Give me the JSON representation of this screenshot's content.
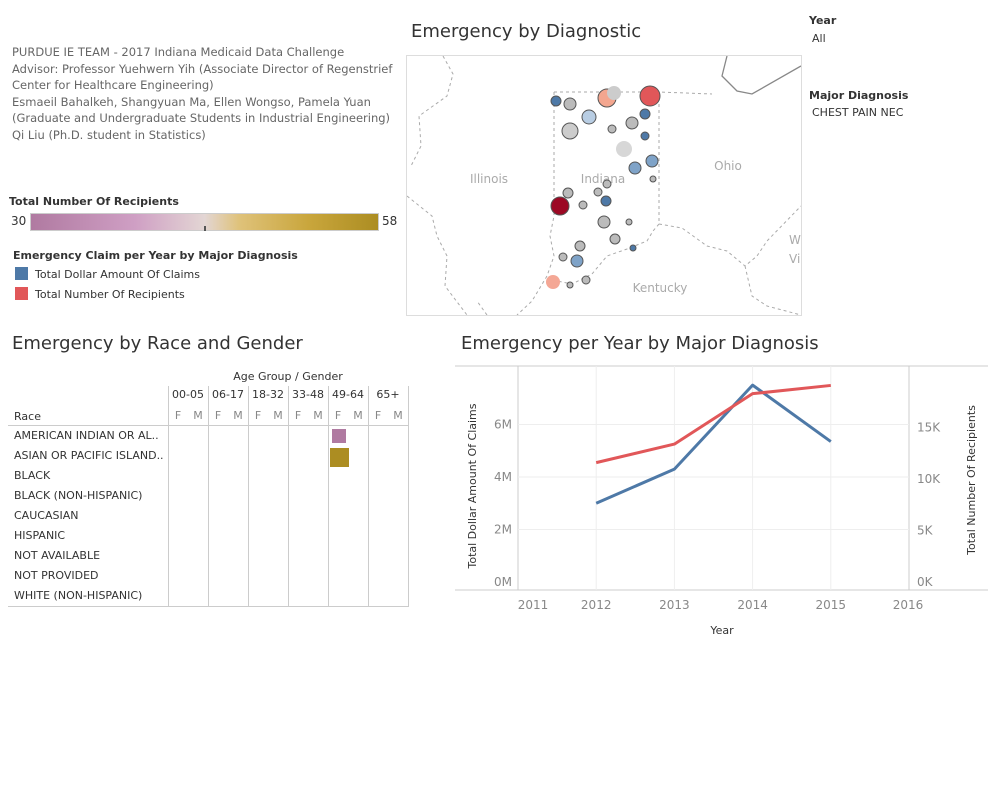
{
  "info": {
    "lines": [
      "PURDUE IE TEAM - 2017 Indiana Medicaid Data Challenge",
      "Advisor: Professor Yuehwern Yih (Associate Director of Regenstrief",
      "Center for Healthcare Engineering)",
      "Esmaeil Bahalkeh, Shangyuan Ma,  Ellen Wongso, Pamela Yuan",
      "(Graduate and Undergraduate Students in Industrial Engineering)",
      "Qi Liu (Ph.D. student in Statistics)"
    ]
  },
  "color_legend": {
    "title": "Total Number Of Recipients",
    "min": "30",
    "max": "58",
    "colors": [
      "#b07aa1",
      "#e3d6d4",
      "#ac8d22"
    ]
  },
  "line_legend": {
    "title": "Emergency Claim per Year by Major Diagnosis",
    "items": [
      {
        "label": "Total Dollar Amount Of Claims",
        "color": "#4e79a7"
      },
      {
        "label": "Total Number Of Recipients",
        "color": "#e15759"
      }
    ]
  },
  "map": {
    "title": "Emergency by Diagnostic",
    "labels": {
      "illinois": "Illinois",
      "indiana": "Indiana",
      "ohio": "Ohio",
      "kentucky": "Kentucky",
      "wv": "W\nVi"
    }
  },
  "filters": {
    "year": {
      "label": "Year",
      "value": "All"
    },
    "diagnosis": {
      "label": "Major Diagnosis",
      "value": "CHEST PAIN NEC"
    }
  },
  "race_gender": {
    "title": "Emergency by Race and Gender",
    "header": "Age Group  /  Gender",
    "row_header": "Race",
    "age_groups": [
      "00-05",
      "06-17",
      "18-32",
      "33-48",
      "49-64",
      "65+"
    ],
    "genders": [
      "F",
      "M"
    ],
    "races": [
      "AMERICAN INDIAN OR AL..",
      "ASIAN OR PACIFIC ISLAND..",
      "BLACK",
      "BLACK (NON-HISPANIC)",
      "CAUCASIAN",
      "HISPANIC",
      "NOT AVAILABLE",
      "NOT PROVIDED",
      "WHITE (NON-HISPANIC)"
    ],
    "cells": [
      {
        "race": "AMERICAN INDIAN OR AL..",
        "age": "49-64",
        "gender": "F",
        "value": 30,
        "color": "#b07aa1"
      },
      {
        "race": "ASIAN OR PACIFIC ISLAND..",
        "age": "49-64",
        "gender": "F",
        "value": 58,
        "color": "#ac8d22"
      }
    ]
  },
  "chart_data": {
    "type": "line",
    "title": "Emergency per Year by Major Diagnosis",
    "xlabel": "Year",
    "x": [
      2012,
      2013,
      2014,
      2015
    ],
    "x_ticks": [
      "2011",
      "2012",
      "2013",
      "2014",
      "2015",
      "2016"
    ],
    "xlim": [
      2011,
      2016
    ],
    "series": [
      {
        "name": "Total Dollar Amount Of Claims",
        "axis": "left",
        "color": "#4e79a7",
        "values": [
          3000000,
          4300000,
          7500000,
          5350000
        ]
      },
      {
        "name": "Total Number Of Recipients",
        "axis": "right",
        "color": "#e15759",
        "values": [
          11600,
          13400,
          18300,
          19100
        ]
      }
    ],
    "y_left": {
      "label": "Total Dollar Amount Of Claims",
      "ticks": [
        "0M",
        "2M",
        "4M",
        "6M"
      ],
      "tick_values": [
        0,
        2000000,
        4000000,
        6000000
      ],
      "lim": [
        0,
        8000000
      ]
    },
    "y_right": {
      "label": "Total Number Of Recipients",
      "ticks": [
        "0K",
        "5K",
        "10K",
        "15K"
      ],
      "tick_values": [
        0,
        5000,
        10000,
        15000
      ],
      "lim": [
        0,
        20600
      ]
    },
    "grid": true
  }
}
